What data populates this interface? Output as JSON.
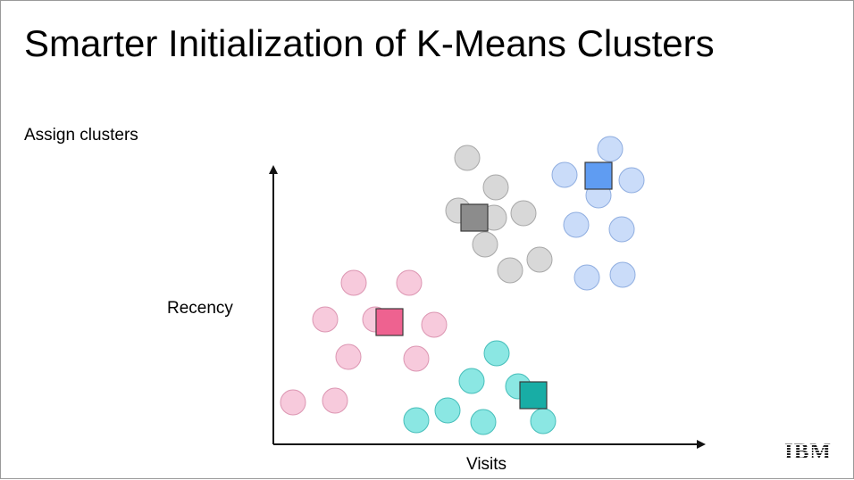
{
  "slide": {
    "title": "Smarter Initialization of K-Means Clusters",
    "subtitle": "Assign clusters"
  },
  "axes": {
    "x_label": "Visits",
    "y_label": "Recency"
  },
  "logo": {
    "text": "IBM",
    "icon": "ibm-logo"
  },
  "colors": {
    "axis": "#111111",
    "gray_point": "#d4d4d4",
    "gray_point_stroke": "#a8a8a8",
    "gray_centroid": "#8c8c8c",
    "blue_point": "#c4d8f8",
    "blue_point_stroke": "#90aee0",
    "blue_centroid": "#5f9cf2",
    "pink_point": "#f6c4d8",
    "pink_point_stroke": "#dc96b2",
    "pink_centroid": "#ee6290",
    "teal_point": "#7ee4e0",
    "teal_point_stroke": "#46beba",
    "teal_centroid": "#18ada5"
  },
  "clusters": [
    {
      "name": "gray",
      "points": [
        [
          522,
          176
        ],
        [
          554,
          209
        ],
        [
          512,
          235
        ],
        [
          552,
          243
        ],
        [
          585,
          238
        ],
        [
          542,
          273
        ],
        [
          570,
          302
        ],
        [
          603,
          290
        ]
      ],
      "centroid": [
        530,
        243
      ]
    },
    {
      "name": "blue",
      "points": [
        [
          682,
          166
        ],
        [
          631,
          195
        ],
        [
          706,
          201
        ],
        [
          669,
          218
        ],
        [
          644,
          251
        ],
        [
          695,
          256
        ],
        [
          656,
          310
        ],
        [
          696,
          307
        ]
      ],
      "centroid": [
        669,
        196
      ]
    },
    {
      "name": "pink",
      "points": [
        [
          395,
          316
        ],
        [
          457,
          316
        ],
        [
          363,
          357
        ],
        [
          419,
          357
        ],
        [
          485,
          363
        ],
        [
          389,
          399
        ],
        [
          465,
          401
        ],
        [
          327,
          450
        ],
        [
          374,
          448
        ]
      ],
      "centroid": [
        435,
        360
      ]
    },
    {
      "name": "teal",
      "points": [
        [
          555,
          395
        ],
        [
          527,
          426
        ],
        [
          579,
          432
        ],
        [
          500,
          459
        ],
        [
          465,
          470
        ],
        [
          540,
          472
        ],
        [
          607,
          471
        ]
      ],
      "centroid": [
        596,
        442
      ]
    }
  ]
}
